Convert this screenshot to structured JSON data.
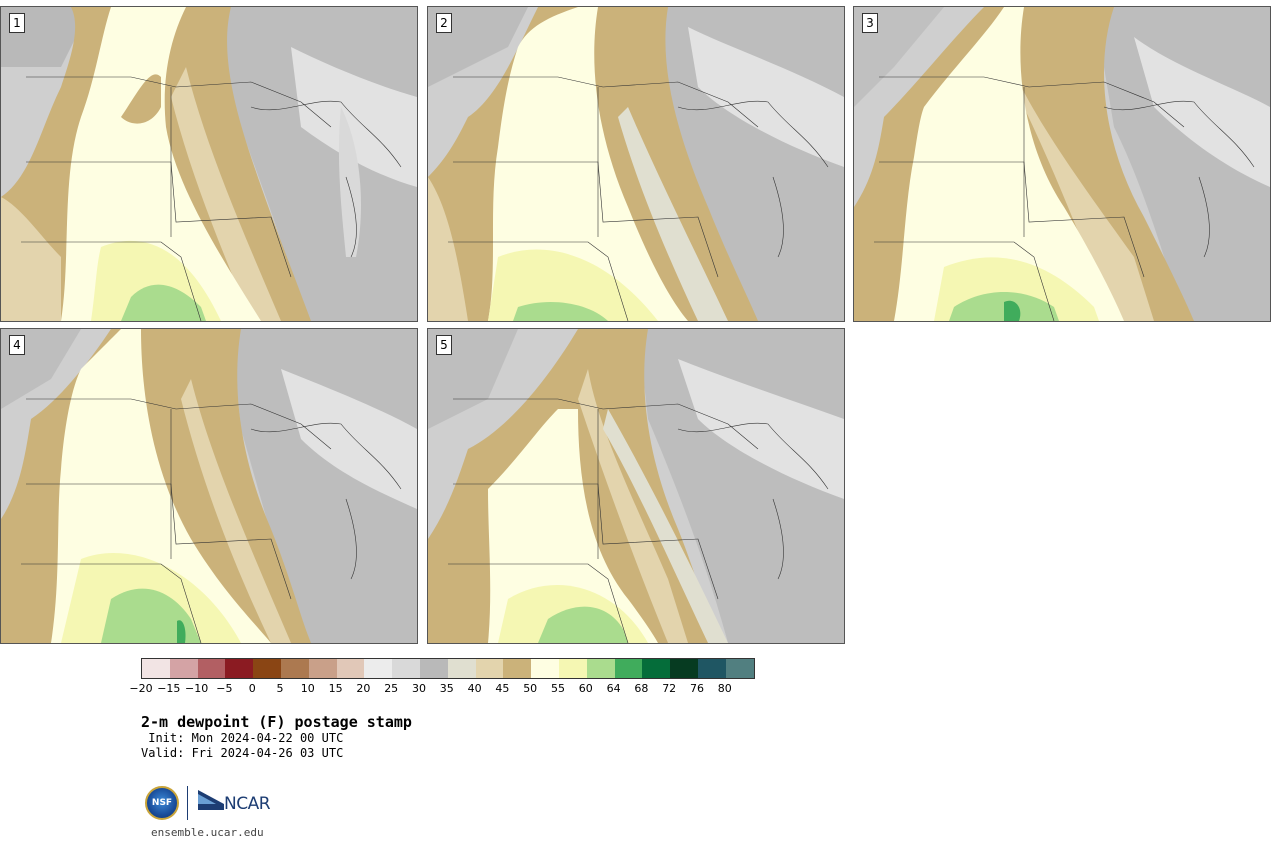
{
  "panels": [
    {
      "label": "1"
    },
    {
      "label": "2"
    },
    {
      "label": "3"
    },
    {
      "label": "4"
    },
    {
      "label": "5"
    }
  ],
  "colorbar": {
    "colors": [
      "#f2e4e4",
      "#d4a3a5",
      "#b25f63",
      "#8b1b22",
      "#8a4514",
      "#ac7950",
      "#c9a089",
      "#e1c8b8",
      "#ececec",
      "#d9d9d9",
      "#b9b9b9",
      "#e0dfd0",
      "#e3d4ad",
      "#cbb27a",
      "#fefee2",
      "#f5f7b3",
      "#aadc8e",
      "#40ac5c",
      "#056d3a",
      "#063b21",
      "#1f5663",
      "#517f80"
    ],
    "ticks": [
      "−20",
      "−15",
      "−10",
      "−5",
      "0",
      "5",
      "10",
      "15",
      "20",
      "25",
      "30",
      "35",
      "40",
      "45",
      "50",
      "55",
      "60",
      "64",
      "68",
      "72",
      "76",
      "80"
    ]
  },
  "title": "2-m dewpoint (F) postage stamp",
  "init": " Init: Mon 2024-04-22 00 UTC",
  "valid": "Valid: Fri 2024-04-26 03 UTC",
  "logos": {
    "nsf": "NSF",
    "ncar": "NCAR"
  },
  "site": "ensemble.ucar.edu"
}
